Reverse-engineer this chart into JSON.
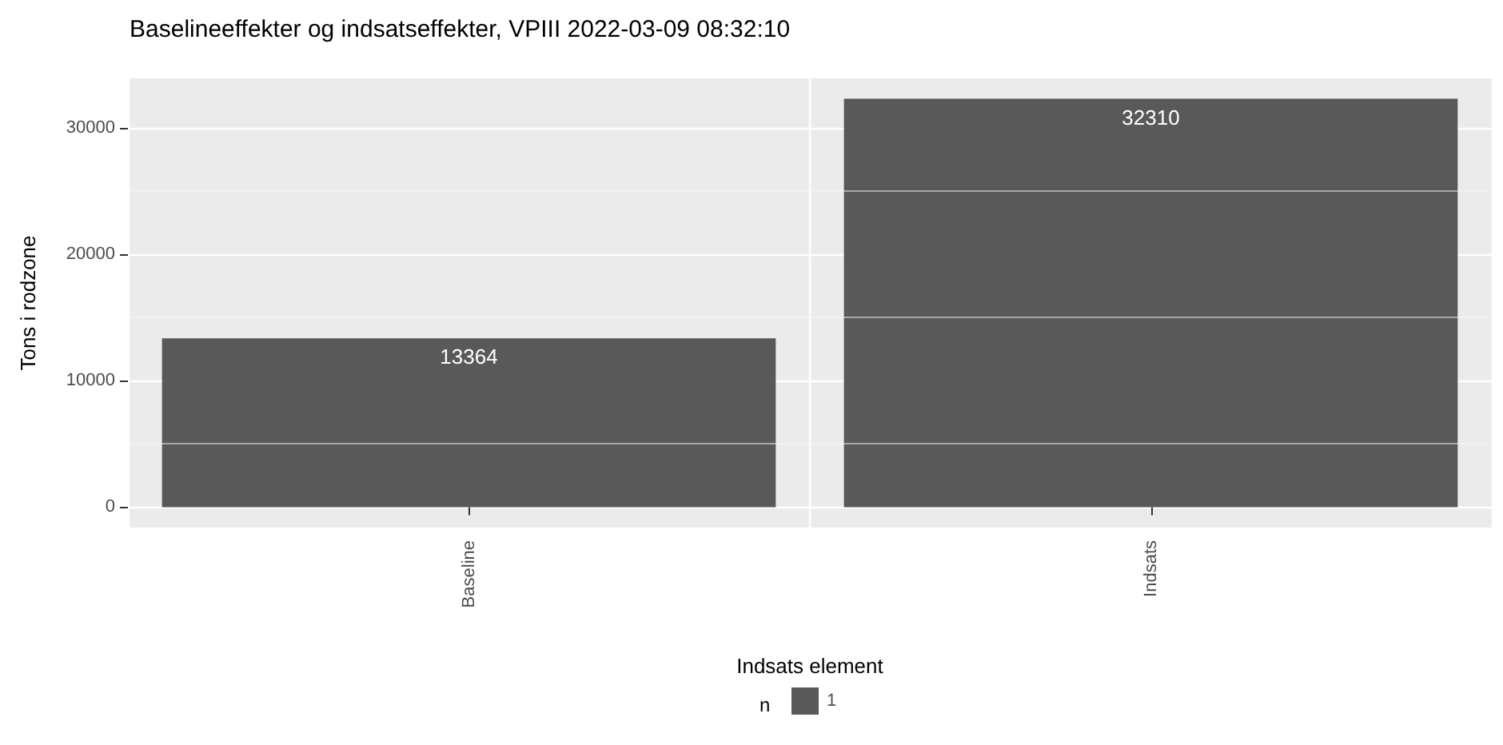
{
  "chart_data": {
    "type": "bar",
    "title": "Baselineeffekter og indsatseffekter, VPIII 2022-03-09 08:32:10",
    "xlabel": "Indsats element",
    "ylabel": "Tons i rodzone",
    "legend_title": "n",
    "legend": "bottom",
    "categories": [
      "Baseline",
      "Indsats"
    ],
    "series": [
      {
        "name": "1",
        "color": "#595959",
        "values": [
          13364,
          32310
        ]
      }
    ],
    "data_labels": true,
    "ylim": [
      -1616,
      33926
    ],
    "yticks": [
      0,
      10000,
      20000,
      30000
    ],
    "grid": true
  }
}
